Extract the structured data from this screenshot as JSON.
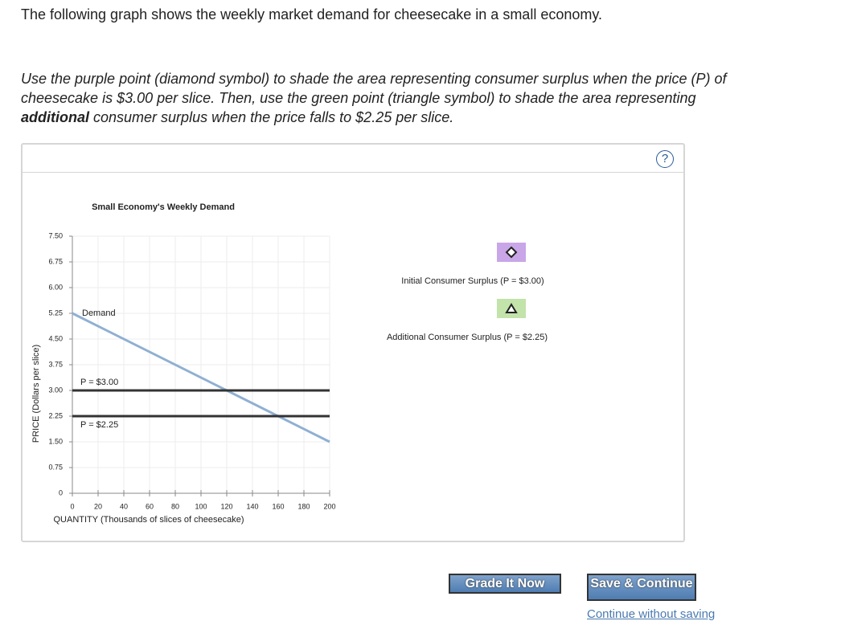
{
  "header": {
    "question": "The following graph shows the weekly market demand for cheesecake in a small economy.",
    "instruction": [
      "Use the purple point (diamond symbol) to shade the area representing consumer surplus when the price (P) of cheesecake is $3.00 per slice. Then, use the green point (triangle symbol) to shade the area representing",
      "additional",
      "consumer surplus when the price falls to $2.25 per slice."
    ]
  },
  "help": "?",
  "chart_data": {
    "type": "line",
    "title": "Small Economy's Weekly Demand",
    "x_label": "QUANTITY (Thousands of slices of cheesecake)",
    "y_label": "PRICE (Dollars per slice)",
    "xlim": [
      0,
      200
    ],
    "ylim": [
      0,
      7.5
    ],
    "xticks": [
      0,
      20,
      40,
      60,
      80,
      100,
      120,
      140,
      160,
      180,
      200
    ],
    "yticks": [
      0,
      {
        "value": 0.75,
        "label": "0.75"
      },
      {
        "value": 1.5,
        "label": "1.50"
      },
      {
        "value": 2.25,
        "label": "2.25"
      },
      {
        "value": 3,
        "label": "3.00"
      },
      {
        "value": 3.75,
        "label": "3.75"
      },
      {
        "value": 4.5,
        "label": "4.50"
      },
      {
        "value": 5.25,
        "label": "5.25"
      },
      {
        "value": 6,
        "label": "6.00"
      },
      {
        "value": 6.75,
        "label": "6.75"
      },
      {
        "value": 7.5,
        "label": "7.50"
      }
    ],
    "grid": true,
    "series": [
      {
        "name": "Demand",
        "color": "#8fb0d3",
        "x": [
          0,
          200
        ],
        "values": [
          5.25,
          1.5
        ]
      },
      {
        "name": "P = $3.00",
        "color": "#333333",
        "x": [
          0,
          200
        ],
        "values": [
          3,
          3
        ]
      },
      {
        "name": "P = $2.25",
        "color": "#333333",
        "x": [
          0,
          200
        ],
        "values": [
          2.25,
          2.25
        ]
      }
    ]
  },
  "palette": [
    {
      "label": "Initial Consumer Surplus (P = $3.00)",
      "color": "#c9a6e8"
    },
    {
      "label": "Additional Consumer Surplus (P = $2.25)",
      "color": "#c2e3aa"
    }
  ],
  "buttons": {
    "grade": "Grade It Now",
    "save": "Save & Continue",
    "continue": "Continue without saving"
  }
}
